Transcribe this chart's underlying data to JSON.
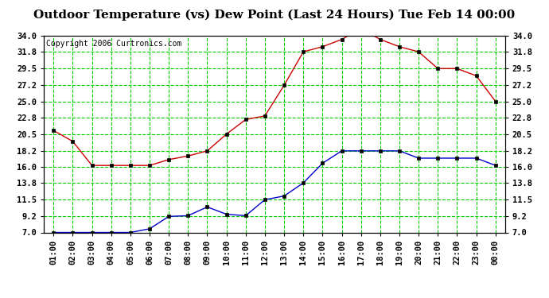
{
  "title": "Outdoor Temperature (vs) Dew Point (Last 24 Hours) Tue Feb 14 00:00",
  "copyright": "Copyright 2006 Curtronics.com",
  "x_labels": [
    "01:00",
    "02:00",
    "03:00",
    "04:00",
    "05:00",
    "06:00",
    "07:00",
    "08:00",
    "09:00",
    "10:00",
    "11:00",
    "12:00",
    "13:00",
    "14:00",
    "15:00",
    "16:00",
    "17:00",
    "18:00",
    "19:00",
    "20:00",
    "21:00",
    "22:00",
    "23:00",
    "00:00"
  ],
  "temp_data": [
    21.0,
    19.5,
    16.2,
    16.2,
    16.2,
    16.2,
    17.0,
    17.5,
    18.2,
    20.5,
    22.5,
    23.0,
    27.2,
    31.8,
    32.5,
    33.5,
    35.0,
    33.5,
    32.5,
    31.8,
    29.5,
    29.5,
    28.5,
    25.0
  ],
  "dew_data": [
    7.0,
    7.0,
    7.0,
    7.0,
    7.0,
    7.5,
    9.2,
    9.3,
    10.5,
    9.5,
    9.3,
    11.5,
    12.0,
    13.8,
    16.5,
    18.2,
    18.2,
    18.2,
    18.2,
    17.2,
    17.2,
    17.2,
    17.2,
    16.2
  ],
  "temp_color": "#cc0000",
  "dew_color": "#0000cc",
  "bg_color": "#ffffff",
  "grid_color": "#00cc00",
  "y_ticks": [
    7.0,
    9.2,
    11.5,
    13.8,
    16.0,
    18.2,
    20.5,
    22.8,
    25.0,
    27.2,
    29.5,
    31.8,
    34.0
  ],
  "y_min": 7.0,
  "y_max": 34.0,
  "title_fontsize": 11,
  "copyright_fontsize": 7,
  "axis_fontsize": 7.5,
  "marker_size": 3.5
}
